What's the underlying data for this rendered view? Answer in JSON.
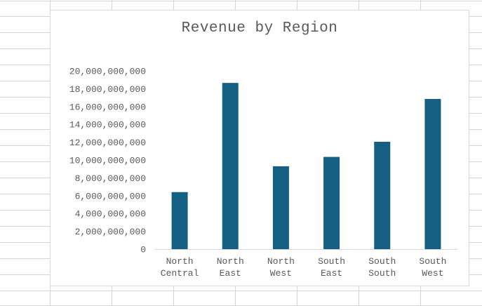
{
  "chart_data": {
    "type": "bar",
    "title": "Revenue by Region",
    "xlabel": "",
    "ylabel": "",
    "categories": [
      "North Central",
      "North East",
      "North West",
      "South East",
      "South South",
      "South West"
    ],
    "category_lines": [
      [
        "North",
        "Central"
      ],
      [
        "North",
        "East"
      ],
      [
        "North",
        "West"
      ],
      [
        "South",
        "East"
      ],
      [
        "South",
        "South"
      ],
      [
        "South",
        "West"
      ]
    ],
    "values": [
      6400000000,
      18650000000,
      9300000000,
      10350000000,
      12050000000,
      16850000000
    ],
    "ylim": [
      0,
      20000000000
    ],
    "yticks": [
      0,
      2000000000,
      4000000000,
      6000000000,
      8000000000,
      10000000000,
      12000000000,
      14000000000,
      16000000000,
      18000000000,
      20000000000
    ],
    "ytick_labels": [
      "0",
      "2,000,000,000",
      "4,000,000,000",
      "6,000,000,000",
      "8,000,000,000",
      "10,000,000,000",
      "12,000,000,000",
      "14,000,000,000",
      "16,000,000,000",
      "18,000,000,000",
      "20,000,000,000"
    ],
    "grid": false,
    "legend": "none",
    "bar_color": "#155f83"
  }
}
